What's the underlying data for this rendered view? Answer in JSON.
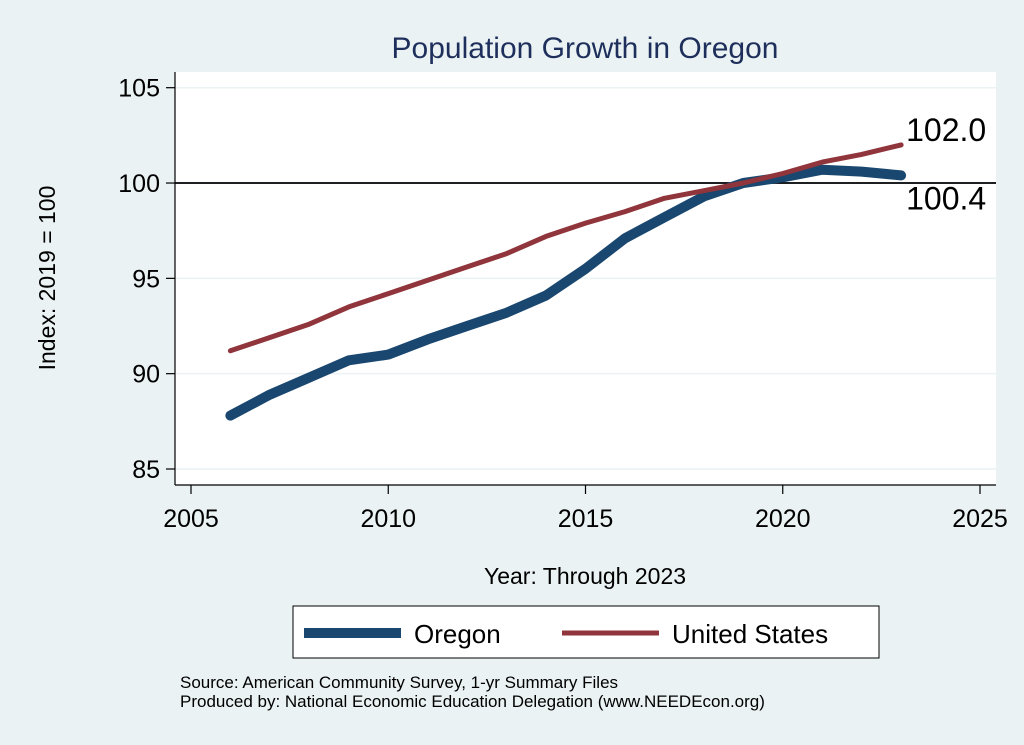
{
  "chart_data": {
    "type": "line",
    "title": "Population Growth in Oregon",
    "xlabel": "Year: Through 2023",
    "ylabel": "Index: 2019 = 100",
    "xlim": [
      2005,
      2025
    ],
    "ylim": [
      85,
      105
    ],
    "x_ticks": [
      2005,
      2010,
      2015,
      2020,
      2025
    ],
    "y_ticks": [
      85,
      90,
      95,
      100,
      105
    ],
    "grid": true,
    "reference_line": 100,
    "x": [
      2006,
      2007,
      2008,
      2009,
      2010,
      2011,
      2012,
      2013,
      2014,
      2015,
      2016,
      2017,
      2018,
      2019,
      2020,
      2021,
      2022,
      2023
    ],
    "series": [
      {
        "name": "Oregon",
        "color": "#1a476f",
        "values": [
          87.8,
          88.9,
          89.8,
          90.7,
          91.0,
          91.8,
          92.5,
          93.2,
          94.1,
          95.5,
          97.1,
          98.2,
          99.3,
          100.0,
          100.3,
          100.7,
          100.6,
          100.4
        ],
        "end_label": "100.4"
      },
      {
        "name": "United States",
        "color": "#90353b",
        "values": [
          91.2,
          91.9,
          92.6,
          93.5,
          94.2,
          94.9,
          95.6,
          96.3,
          97.2,
          97.9,
          98.5,
          99.2,
          99.6,
          100.0,
          100.5,
          101.1,
          101.5,
          102.0
        ],
        "end_label": "102.0"
      }
    ],
    "legend": {
      "position": "bottom",
      "entries": [
        "Oregon",
        "United States"
      ]
    },
    "notes": [
      "Source: American Community Survey, 1-yr Summary Files",
      "Produced by: National Economic Education Delegation (www.NEEDEcon.org)"
    ]
  }
}
